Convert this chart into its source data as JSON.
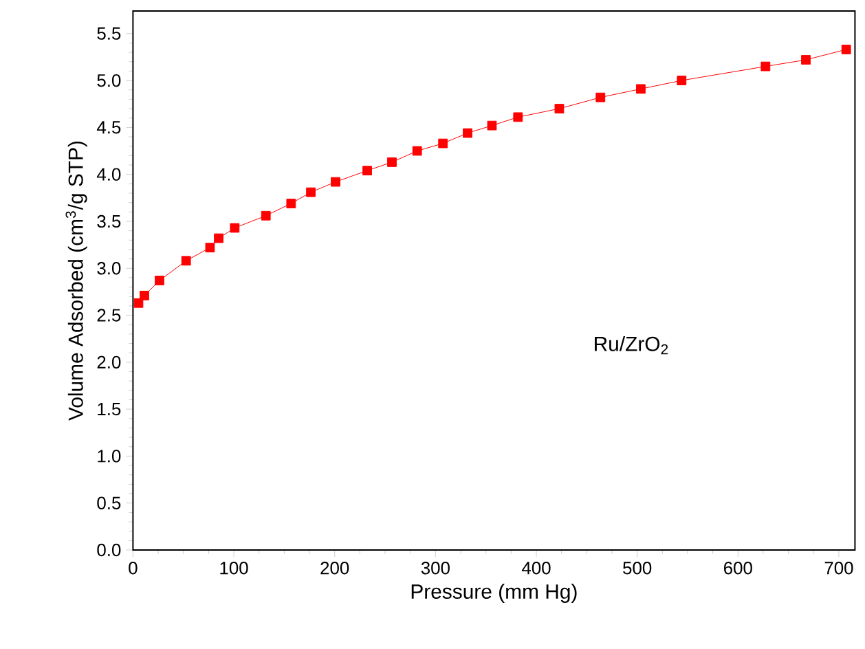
{
  "chart_data": {
    "type": "line",
    "xlabel": "Pressure (mm Hg)",
    "ylabel": "Volume Adsorbed (cm$^{3}$/g STP)",
    "annotations": [
      "Ru/ZrO$_{2}$"
    ],
    "x": [
      5.5,
      11.3,
      26.3,
      52.7,
      76.4,
      85,
      100.9,
      131.8,
      156.8,
      176.4,
      200.9,
      232.3,
      256.8,
      281.8,
      307.4,
      331.8,
      356,
      381.8,
      422.8,
      463.6,
      503.6,
      544.1,
      627.3,
      667.3,
      707.3
    ],
    "series": [
      {
        "color": "#ff0000",
        "values": [
          2.63,
          2.71,
          2.87,
          3.08,
          3.22,
          3.32,
          3.43,
          3.56,
          3.69,
          3.81,
          3.92,
          4.04,
          4.13,
          4.25,
          4.33,
          4.44,
          4.52,
          4.61,
          4.7,
          4.82,
          4.91,
          5.0,
          5.15,
          5.22,
          5.33
        ]
      }
    ],
    "xlim": [
      0,
      716
    ],
    "ylim": [
      0,
      5.74
    ],
    "xticks": [
      0,
      100,
      200,
      300,
      400,
      500,
      600,
      700
    ],
    "yticks": [
      {
        "value": 0,
        "label": "0.0"
      },
      {
        "value": 0.5,
        "label": "0.5"
      },
      {
        "value": 1,
        "label": "1.0"
      },
      {
        "value": 1.5,
        "label": "1.5"
      },
      {
        "value": 2,
        "label": "2.0"
      },
      {
        "value": 2.5,
        "label": "2.5"
      },
      {
        "value": 3,
        "label": "3.0"
      },
      {
        "value": 3.5,
        "label": "3.5"
      },
      {
        "value": 4,
        "label": "4.0"
      },
      {
        "value": 4.5,
        "label": "4.5"
      },
      {
        "value": 5,
        "label": "5.0"
      },
      {
        "value": 5.5,
        "label": "5.5"
      }
    ],
    "grid": false,
    "marker": "square",
    "line_style": "solid"
  }
}
